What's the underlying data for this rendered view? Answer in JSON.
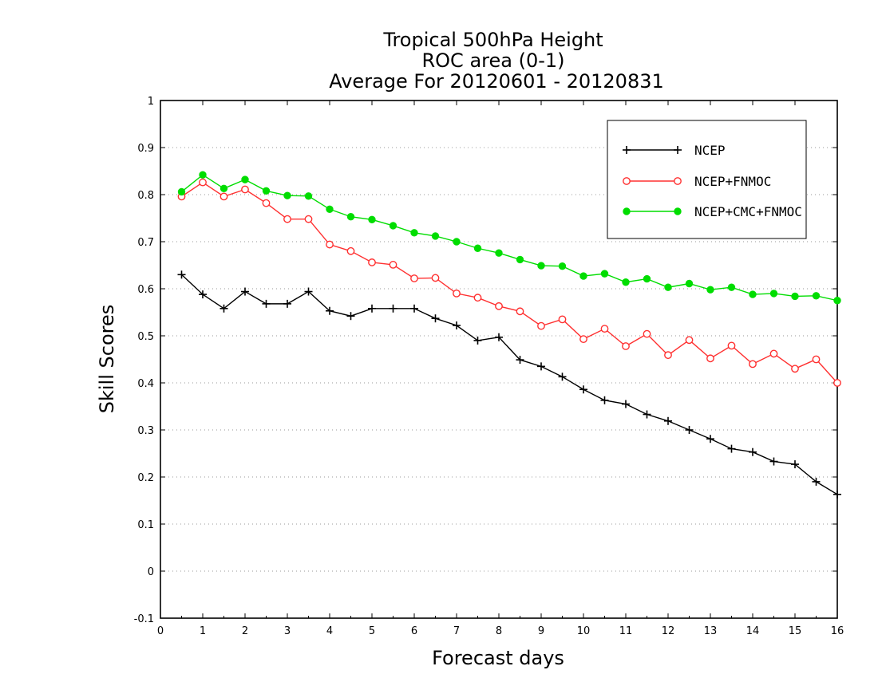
{
  "chart_data": {
    "type": "line",
    "title_lines": [
      "Tropical 500hPa Height",
      "ROC area (0-1)",
      "Average For 20120601 - 20120831"
    ],
    "xlabel": "Forecast days",
    "ylabel": "Skill Scores",
    "xlim": [
      0,
      16
    ],
    "ylim": [
      -0.1,
      1
    ],
    "x_ticks": [
      "0",
      "1",
      "2",
      "3",
      "4",
      "5",
      "6",
      "7",
      "8",
      "9",
      "10",
      "11",
      "12",
      "13",
      "14",
      "15",
      "16"
    ],
    "y_ticks": [
      "-0.1",
      "0",
      "0.1",
      "0.2",
      "0.3",
      "0.4",
      "0.5",
      "0.6",
      "0.7",
      "0.8",
      "0.9",
      "1"
    ],
    "grid": "horizontal dotted",
    "legend_position": "top-right",
    "x": [
      0.5,
      1,
      1.5,
      2,
      2.5,
      3,
      3.5,
      4,
      4.5,
      5,
      5.5,
      6,
      6.5,
      7,
      7.5,
      8,
      8.5,
      9,
      9.5,
      10,
      10.5,
      11,
      11.5,
      12,
      12.5,
      13,
      13.5,
      14,
      14.5,
      15,
      15.5,
      16
    ],
    "series": [
      {
        "name": "NCEP",
        "color": "#000000",
        "marker": "plus",
        "values": [
          0.63,
          0.588,
          0.558,
          0.594,
          0.568,
          0.568,
          0.594,
          0.553,
          0.542,
          0.558,
          0.558,
          0.558,
          0.537,
          0.522,
          0.49,
          0.497,
          0.449,
          0.435,
          0.413,
          0.386,
          0.363,
          0.355,
          0.333,
          0.319,
          0.3,
          0.281,
          0.26,
          0.253,
          0.233,
          0.227,
          0.19,
          0.163
        ]
      },
      {
        "name": "NCEP+FNMOC",
        "color": "#ff3030",
        "marker": "open-circle",
        "values": [
          0.796,
          0.826,
          0.796,
          0.811,
          0.782,
          0.748,
          0.748,
          0.694,
          0.68,
          0.656,
          0.651,
          0.622,
          0.623,
          0.59,
          0.581,
          0.563,
          0.552,
          0.521,
          0.535,
          0.493,
          0.515,
          0.478,
          0.504,
          0.459,
          0.491,
          0.452,
          0.479,
          0.44,
          0.462,
          0.43,
          0.45,
          0.4
        ]
      },
      {
        "name": "NCEP+CMC+FNMOC",
        "color": "#00dd00",
        "marker": "filled-circle",
        "values": [
          0.806,
          0.842,
          0.813,
          0.832,
          0.808,
          0.798,
          0.797,
          0.769,
          0.753,
          0.747,
          0.734,
          0.719,
          0.712,
          0.7,
          0.686,
          0.676,
          0.662,
          0.649,
          0.648,
          0.627,
          0.632,
          0.614,
          0.621,
          0.603,
          0.611,
          0.598,
          0.603,
          0.588,
          0.59,
          0.584,
          0.585,
          0.575
        ]
      }
    ]
  }
}
